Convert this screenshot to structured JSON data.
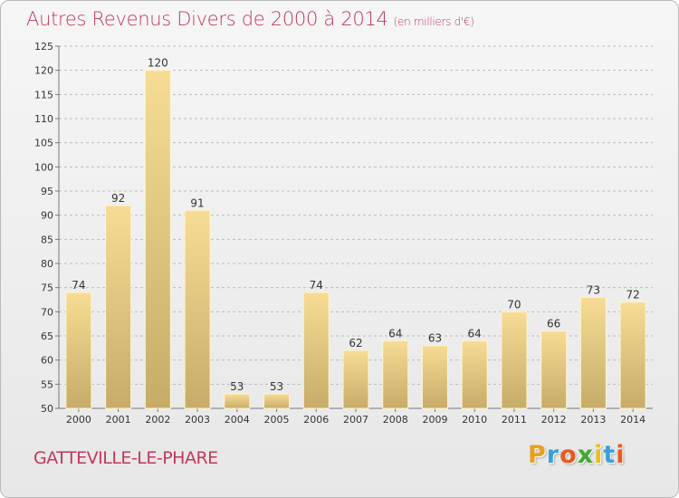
{
  "header": {
    "title": "Autres Revenus Divers de 2000 à 2014",
    "subtitle": "(en milliers d'€)"
  },
  "footer": {
    "commune": "GATTEVILLE-LE-PHARE",
    "logo_letters": [
      "P",
      "r",
      "o",
      "x",
      "i",
      "t",
      "i"
    ],
    "logo_colors": [
      "#e8a020",
      "#3aa0d8",
      "#e85a20",
      "#40a830",
      "#e8c020",
      "#3aa0d8",
      "#e85a20"
    ]
  },
  "colors": {
    "bar_light": "#f7dc95",
    "bar_dark": "#c6ac68",
    "bar_edge": "#fff4cf",
    "grid": "#bdbdbd",
    "title": "#c03a5a"
  },
  "chart_data": {
    "type": "bar",
    "title": "Autres Revenus Divers de 2000 à 2014",
    "subtitle": "(en milliers d'€)",
    "xlabel": "",
    "ylabel": "",
    "categories": [
      "2000",
      "2001",
      "2002",
      "2003",
      "2004",
      "2005",
      "2006",
      "2007",
      "2008",
      "2009",
      "2010",
      "2011",
      "2012",
      "2013",
      "2014"
    ],
    "values": [
      74,
      92,
      120,
      91,
      53,
      53,
      74,
      62,
      64,
      63,
      64,
      70,
      66,
      73,
      72
    ],
    "ylim": [
      50,
      125
    ],
    "yticks": [
      50,
      55,
      60,
      65,
      70,
      75,
      80,
      85,
      90,
      95,
      100,
      105,
      110,
      115,
      120,
      125
    ],
    "grid": true,
    "legend": "none"
  }
}
